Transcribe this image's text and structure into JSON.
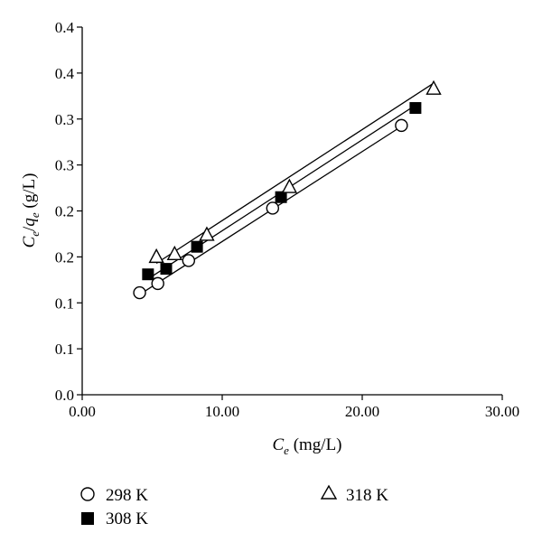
{
  "chart_data": {
    "type": "scatter",
    "xlabel": {
      "main": "C",
      "sub": "e",
      "rest": " (mg/L)"
    },
    "ylabel": {
      "c": "C",
      "c_sub": "e",
      "slash": "/",
      "q": "q",
      "q_sub": "e",
      "rest": " (g/L)"
    },
    "xlim": [
      0,
      30
    ],
    "ylim": [
      0,
      0.4
    ],
    "x_ticks": [
      {
        "value": 0,
        "label": "0.00"
      },
      {
        "value": 10,
        "label": "10.00"
      },
      {
        "value": 20,
        "label": "20.00"
      },
      {
        "value": 30,
        "label": "30.00"
      }
    ],
    "y_ticks": [
      {
        "value": 0.0,
        "label": "0.0"
      },
      {
        "value": 0.05,
        "label": "0.1"
      },
      {
        "value": 0.1,
        "label": "0.1"
      },
      {
        "value": 0.15,
        "label": "0.2"
      },
      {
        "value": 0.2,
        "label": "0.2"
      },
      {
        "value": 0.25,
        "label": "0.3"
      },
      {
        "value": 0.3,
        "label": "0.3"
      },
      {
        "value": 0.35,
        "label": "0.4"
      },
      {
        "value": 0.4,
        "label": "0.4"
      }
    ],
    "grid": false,
    "legend_position": "bottom",
    "series": [
      {
        "name": "298 K",
        "marker": "circle",
        "points": [
          [
            4.1,
            0.111
          ],
          [
            5.4,
            0.121
          ],
          [
            7.6,
            0.146
          ],
          [
            13.6,
            0.203
          ],
          [
            22.8,
            0.293
          ]
        ],
        "fit": [
          [
            4.1,
            0.109
          ],
          [
            22.8,
            0.292
          ]
        ]
      },
      {
        "name": "308 K",
        "marker": "square",
        "points": [
          [
            4.7,
            0.131
          ],
          [
            6.0,
            0.137
          ],
          [
            8.2,
            0.161
          ],
          [
            14.2,
            0.215
          ],
          [
            23.8,
            0.312
          ]
        ],
        "fit": [
          [
            4.7,
            0.126
          ],
          [
            23.8,
            0.315
          ]
        ]
      },
      {
        "name": "318 K",
        "marker": "triangle",
        "points": [
          [
            5.3,
            0.15
          ],
          [
            6.6,
            0.153
          ],
          [
            8.9,
            0.174
          ],
          [
            14.8,
            0.226
          ],
          [
            25.1,
            0.333
          ]
        ],
        "fit": [
          [
            5.3,
            0.143
          ],
          [
            25.1,
            0.339
          ]
        ]
      }
    ]
  }
}
